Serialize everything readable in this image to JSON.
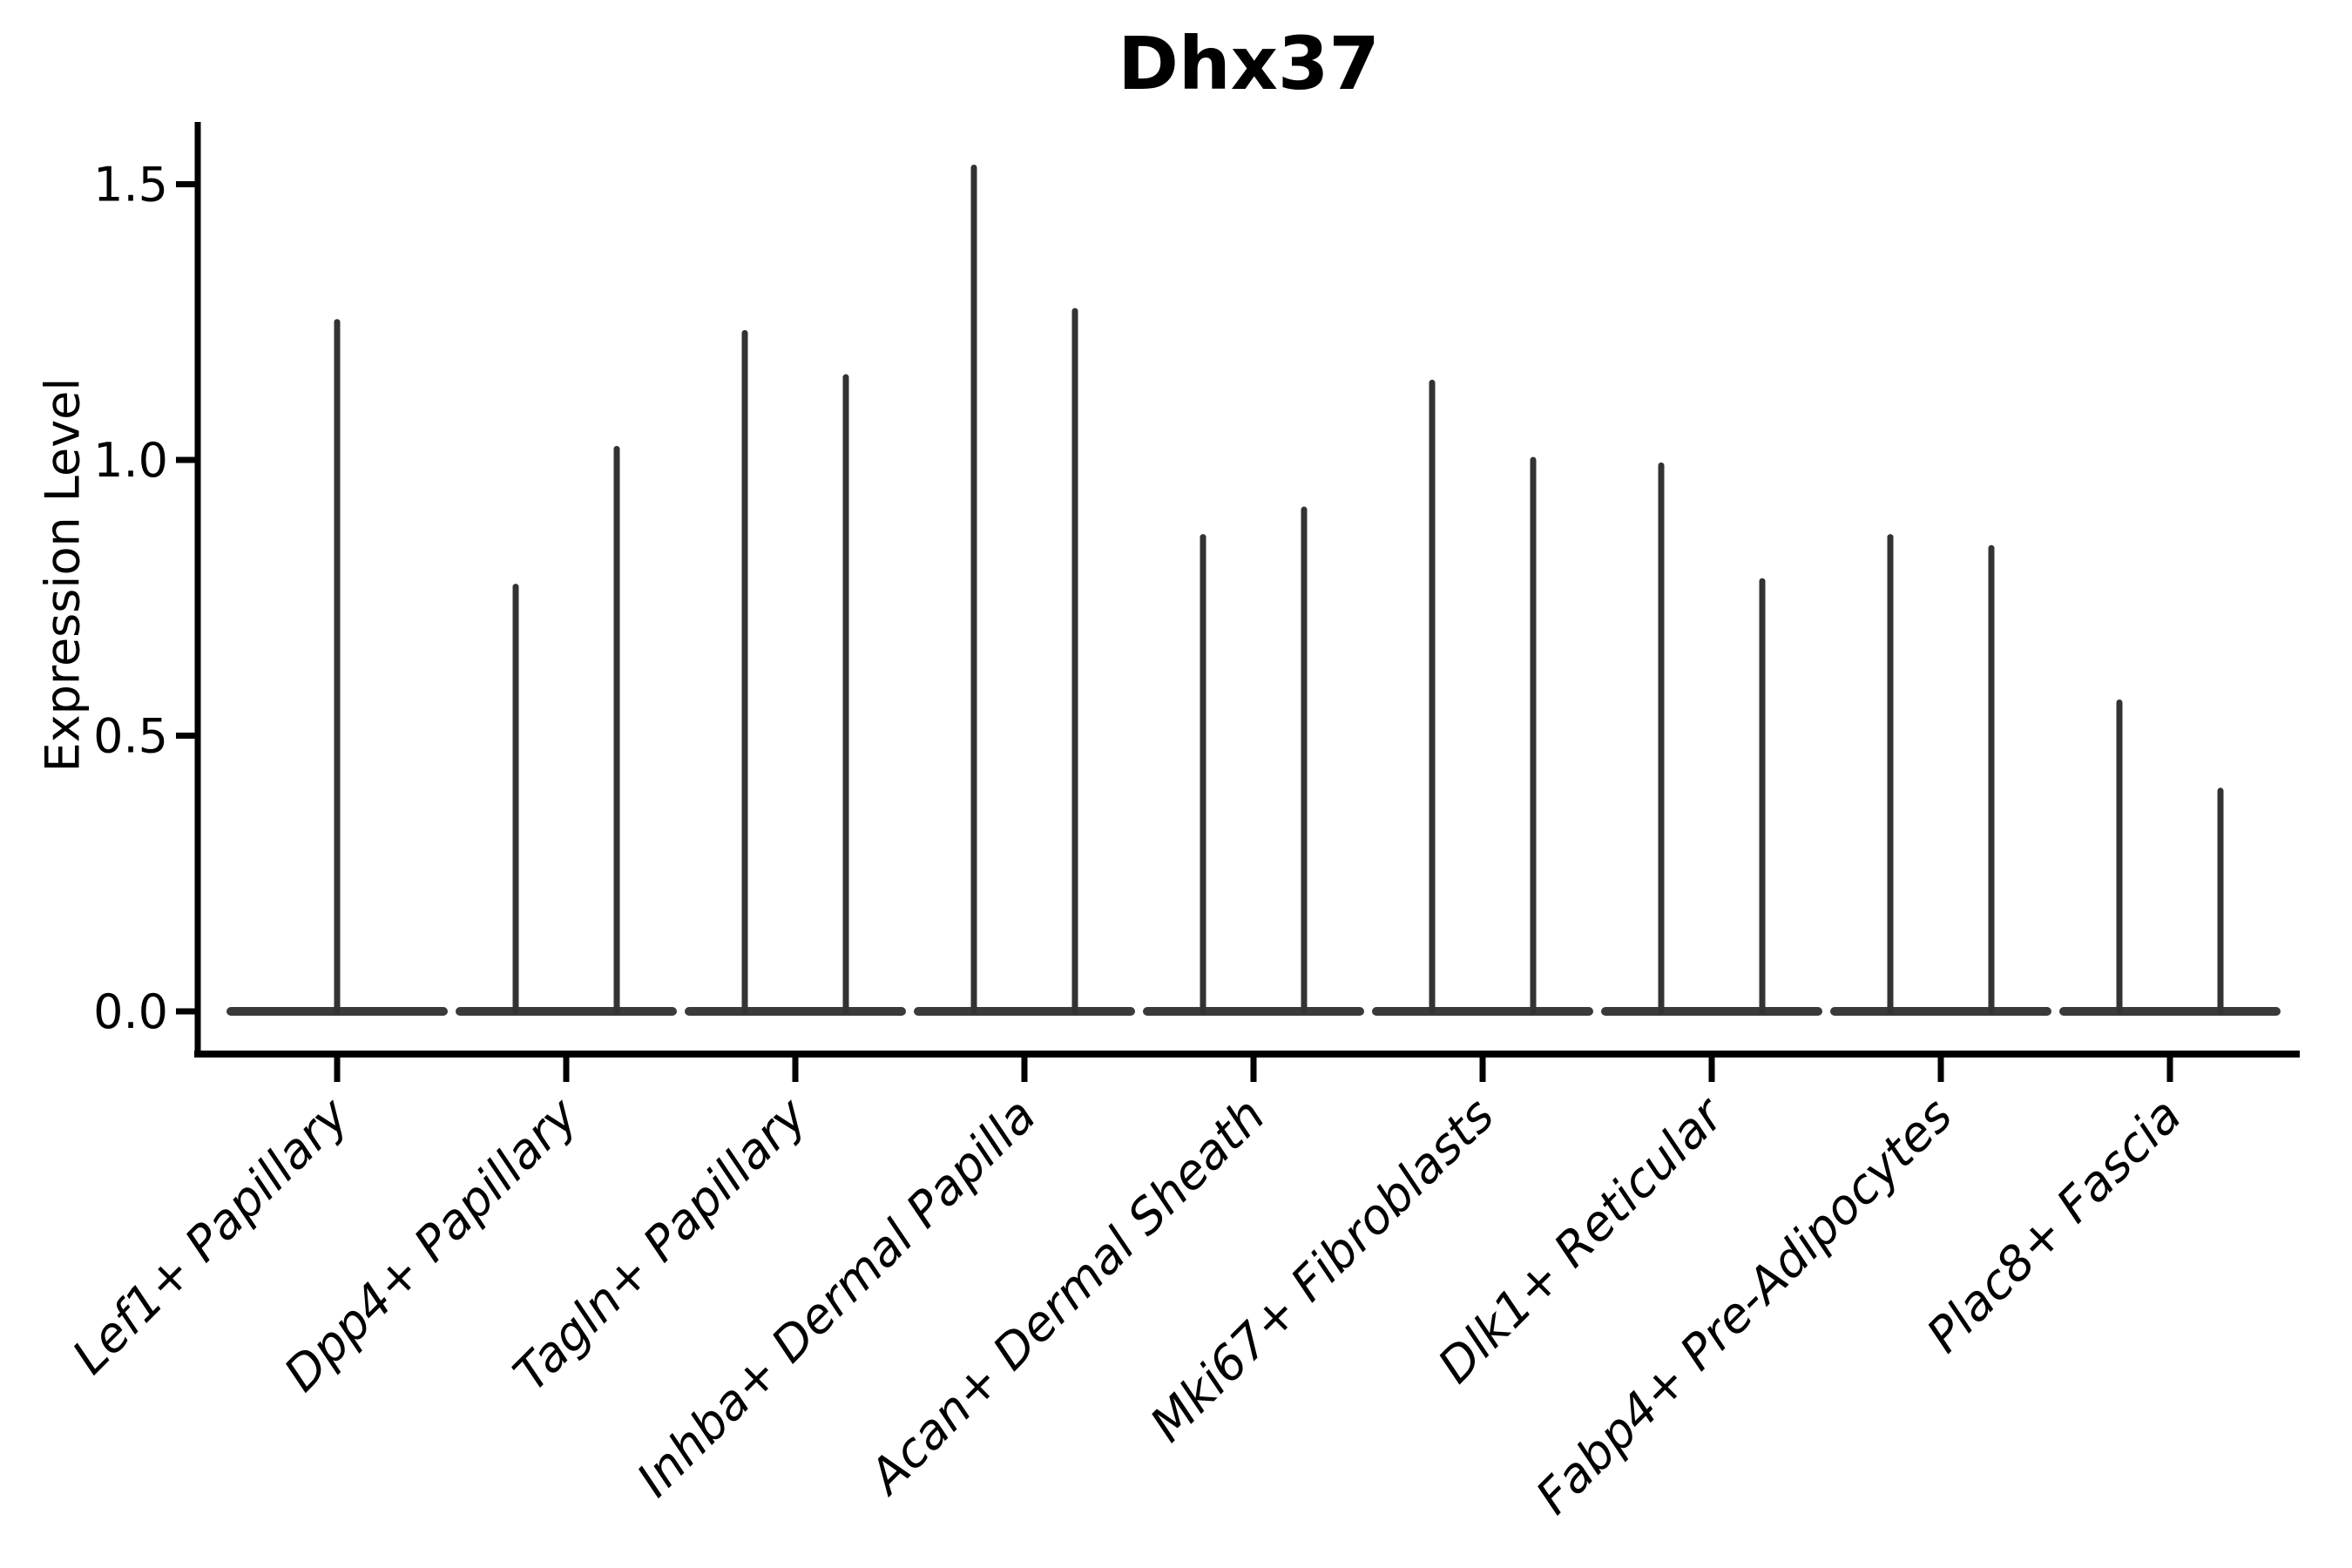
{
  "figure": {
    "title": "Dhx37"
  },
  "chart_data": {
    "type": "violin",
    "title": "Dhx37",
    "subtitle": "",
    "xlabel": "",
    "ylabel": "Expression Level",
    "ylim": [
      -0.08,
      1.61
    ],
    "yticks": [
      0.0,
      0.5,
      1.0,
      1.5
    ],
    "ytick_labels": [
      "0.0",
      "0.5",
      "1.0",
      "1.5"
    ],
    "grid": false,
    "legend_position": "none",
    "categories": [
      "Lef1+ Papillary",
      "Dpp4+ Papillary",
      "Tagln+ Papillary",
      "Inhba+ Dermal Papilla",
      "Acan+ Dermal Sheath",
      "Mki67+ Fibroblasts",
      "Dlk1+ Reticular",
      "Fabp4+ Pre-Adipocytes",
      "Plac8+ Fascia"
    ],
    "description": "Violin plot of Dhx37 expression per fibroblast cluster; each violin collapses to a flat base at 0 with thin vertical density spikes reaching the listed maximum expression value.",
    "violins": [
      {
        "category": "Lef1+ Papillary",
        "spikes": [
          {
            "pos": "center",
            "max": 1.25
          }
        ]
      },
      {
        "category": "Dpp4+ Papillary",
        "spikes": [
          {
            "pos": "left",
            "max": 0.77
          },
          {
            "pos": "right",
            "max": 1.02
          }
        ]
      },
      {
        "category": "Tagln+ Papillary",
        "spikes": [
          {
            "pos": "left",
            "max": 1.23
          },
          {
            "pos": "right",
            "max": 1.15
          }
        ]
      },
      {
        "category": "Inhba+ Dermal Papilla",
        "spikes": [
          {
            "pos": "left",
            "max": 1.53
          },
          {
            "pos": "right",
            "max": 1.27
          }
        ]
      },
      {
        "category": "Acan+ Dermal Sheath",
        "spikes": [
          {
            "pos": "left",
            "max": 0.86
          },
          {
            "pos": "right",
            "max": 0.91
          }
        ]
      },
      {
        "category": "Mki67+ Fibroblasts",
        "spikes": [
          {
            "pos": "left",
            "max": 1.14
          },
          {
            "pos": "right",
            "max": 1.0
          }
        ]
      },
      {
        "category": "Dlk1+ Reticular",
        "spikes": [
          {
            "pos": "left",
            "max": 0.99
          },
          {
            "pos": "right",
            "max": 0.78
          }
        ]
      },
      {
        "category": "Fabp4+ Pre-Adipocytes",
        "spikes": [
          {
            "pos": "left",
            "max": 0.86
          },
          {
            "pos": "right",
            "max": 0.84
          }
        ]
      },
      {
        "category": "Plac8+ Fascia",
        "spikes": [
          {
            "pos": "left",
            "max": 0.56
          },
          {
            "pos": "right",
            "max": 0.4
          }
        ]
      }
    ],
    "colors": {
      "violin_body": "#3a3a3a",
      "spike": "#333333",
      "axis": "#000000",
      "text": "#000000"
    }
  }
}
